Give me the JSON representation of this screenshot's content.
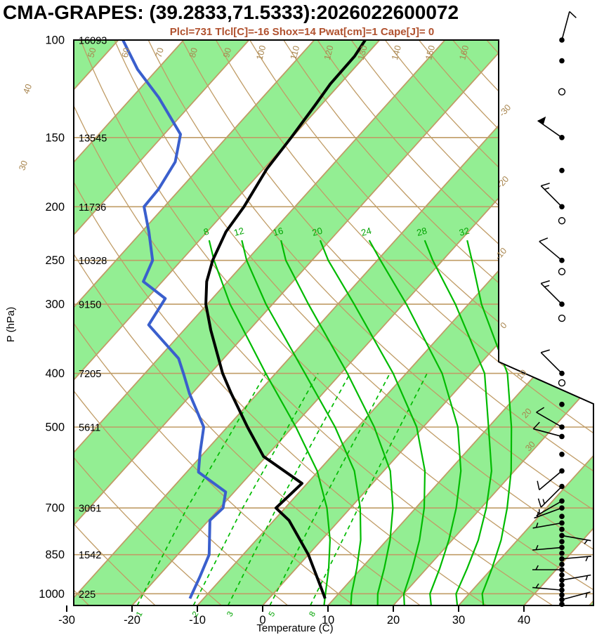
{
  "header": {
    "title": "CMA-GRAPES: (39.2833,71.5333):2026022600072",
    "subtitle": "Plcl=731 Tlcl[C]=-16 Shox=14 Pwat[cm]=1 Cape[J]= 0"
  },
  "axes": {
    "ylabel": "P (hPa)",
    "xlabel": "Temperature (C)",
    "pressure_ticks": [
      {
        "p": 100,
        "height": "16093"
      },
      {
        "p": 150,
        "height": "13545"
      },
      {
        "p": 200,
        "height": "11736"
      },
      {
        "p": 250,
        "height": "10328"
      },
      {
        "p": 300,
        "height": "9150"
      },
      {
        "p": 400,
        "height": "7205"
      },
      {
        "p": 500,
        "height": "5611"
      },
      {
        "p": 700,
        "height": "3061"
      },
      {
        "p": 850,
        "height": "1542"
      },
      {
        "p": 1000,
        "height": "225"
      }
    ],
    "temp_ticks": [
      -30,
      -20,
      -10,
      0,
      10,
      20,
      30,
      40
    ]
  },
  "colors": {
    "band_green": "#93ee93",
    "tan_line": "#c09c66",
    "green_line": "#00bb00",
    "dewpoint_blue": "#3a5fcd",
    "temperature_black": "#000000",
    "subtitle": "#b0512e"
  },
  "chart_data": {
    "type": "skewt-log-p",
    "pressure_range": [
      100,
      1050
    ],
    "isotherm_start": -110,
    "isotherm_end": 50,
    "isotherm_step": 10,
    "dry_adiabats": {
      "start": -30,
      "end": 170,
      "step": 10
    },
    "dry_adiabat_top_labels": [
      50,
      60,
      70,
      80,
      90,
      100,
      110,
      120,
      130,
      140,
      150,
      160
    ],
    "left_margin_labels": [
      40,
      30
    ],
    "right_isotherm_labels": [
      -30,
      -20,
      -10,
      0,
      10,
      20,
      30
    ],
    "moist_adiabats": [
      {
        "v": 8,
        "points": [
          [
            1050,
            9.4
          ],
          [
            1000,
            8.0
          ],
          [
            900,
            5.0
          ],
          [
            800,
            1.3
          ],
          [
            700,
            -3.6
          ],
          [
            600,
            -10.2
          ],
          [
            500,
            -19.5
          ],
          [
            400,
            -31.5
          ],
          [
            300,
            -46.5
          ],
          [
            250,
            -55.0
          ],
          [
            230,
            -58.5
          ]
        ]
      },
      {
        "v": 12,
        "points": [
          [
            1050,
            13.5
          ],
          [
            1000,
            12.0
          ],
          [
            900,
            9.3
          ],
          [
            800,
            6.0
          ],
          [
            700,
            1.5
          ],
          [
            600,
            -4.5
          ],
          [
            500,
            -13.5
          ],
          [
            400,
            -25.5
          ],
          [
            300,
            -41.0
          ],
          [
            250,
            -50.0
          ],
          [
            230,
            -53.5
          ]
        ]
      },
      {
        "v": 16,
        "points": [
          [
            1050,
            17.6
          ],
          [
            1000,
            16.0
          ],
          [
            900,
            13.5
          ],
          [
            800,
            10.5
          ],
          [
            700,
            6.5
          ],
          [
            600,
            1.0
          ],
          [
            500,
            -7.5
          ],
          [
            400,
            -19.0
          ],
          [
            300,
            -34.5
          ],
          [
            250,
            -44.0
          ],
          [
            230,
            -47.5
          ]
        ]
      },
      {
        "v": 20,
        "points": [
          [
            1050,
            21.7
          ],
          [
            1000,
            20.0
          ],
          [
            900,
            17.8
          ],
          [
            800,
            15.0
          ],
          [
            700,
            11.3
          ],
          [
            600,
            6.3
          ],
          [
            500,
            -1.0
          ],
          [
            400,
            -12.0
          ],
          [
            300,
            -27.5
          ],
          [
            250,
            -37.5
          ],
          [
            230,
            -41.5
          ]
        ]
      },
      {
        "v": 24,
        "points": [
          [
            1050,
            25.8
          ],
          [
            1000,
            24.0
          ],
          [
            900,
            22.0
          ],
          [
            800,
            19.5
          ],
          [
            700,
            16.2
          ],
          [
            600,
            11.8
          ],
          [
            500,
            5.3
          ],
          [
            400,
            -4.5
          ],
          [
            300,
            -19.5
          ],
          [
            250,
            -29.5
          ],
          [
            230,
            -34.0
          ]
        ]
      },
      {
        "v": 28,
        "points": [
          [
            1050,
            29.8
          ],
          [
            1000,
            28.0
          ],
          [
            900,
            26.2
          ],
          [
            800,
            24.0
          ],
          [
            700,
            20.8
          ],
          [
            600,
            16.5
          ],
          [
            500,
            10.0
          ],
          [
            400,
            2.0
          ],
          [
            300,
            -12.0
          ],
          [
            250,
            -21.5
          ],
          [
            230,
            -25.5
          ]
        ]
      },
      {
        "v": 32,
        "points": [
          [
            1050,
            33.8
          ],
          [
            1000,
            32.0
          ],
          [
            900,
            30.0
          ],
          [
            800,
            27.5
          ],
          [
            700,
            24.0
          ],
          [
            600,
            19.5
          ],
          [
            500,
            13.5
          ],
          [
            400,
            5.5
          ],
          [
            300,
            -8.0
          ],
          [
            250,
            -15.5
          ],
          [
            230,
            -19.0
          ]
        ]
      }
    ],
    "mixing_ratio_lines": [
      {
        "v": 1,
        "points": [
          [
            1050,
            -19.2
          ],
          [
            700,
            -25.0
          ],
          [
            400,
            -31.5
          ]
        ]
      },
      {
        "v": 2,
        "points": [
          [
            1050,
            -10.6
          ],
          [
            700,
            -16.5
          ],
          [
            400,
            -23.5
          ]
        ]
      },
      {
        "v": 3,
        "points": [
          [
            1050,
            -5.3
          ],
          [
            700,
            -11.3
          ],
          [
            400,
            -18.6
          ]
        ]
      },
      {
        "v": 5,
        "points": [
          [
            1050,
            1.1
          ],
          [
            700,
            -4.8
          ],
          [
            400,
            -12.5
          ]
        ]
      },
      {
        "v": 8,
        "points": [
          [
            1050,
            7.3
          ],
          [
            700,
            1.2
          ],
          [
            400,
            -6.8
          ]
        ]
      }
    ],
    "temperature_profile": [
      [
        100,
        -62.2
      ],
      [
        107,
        -61.6
      ],
      [
        120,
        -61.5
      ],
      [
        131,
        -60.9
      ],
      [
        150,
        -60.1
      ],
      [
        171,
        -59.5
      ],
      [
        200,
        -57.8
      ],
      [
        222,
        -57.1
      ],
      [
        250,
        -55.2
      ],
      [
        273,
        -53.2
      ],
      [
        300,
        -50.2
      ],
      [
        334,
        -45.9
      ],
      [
        400,
        -38.1
      ],
      [
        435,
        -34.0
      ],
      [
        500,
        -26.9
      ],
      [
        565,
        -20.4
      ],
      [
        632,
        -10.8
      ],
      [
        700,
        -11.4
      ],
      [
        737,
        -7.7
      ],
      [
        850,
        0.0
      ],
      [
        957,
        5.6
      ],
      [
        1020,
        8.6
      ]
    ],
    "dewpoint_profile": [
      [
        100,
        -99.3
      ],
      [
        113,
        -93.0
      ],
      [
        127,
        -85.9
      ],
      [
        148,
        -77.5
      ],
      [
        166,
        -74.5
      ],
      [
        186,
        -73.3
      ],
      [
        200,
        -73.1
      ],
      [
        222,
        -68.9
      ],
      [
        250,
        -64.4
      ],
      [
        273,
        -62.9
      ],
      [
        293,
        -57.2
      ],
      [
        327,
        -56.1
      ],
      [
        376,
        -46.9
      ],
      [
        400,
        -44.1
      ],
      [
        435,
        -40.4
      ],
      [
        500,
        -33.6
      ],
      [
        557,
        -30.6
      ],
      [
        603,
        -28.2
      ],
      [
        655,
        -21.3
      ],
      [
        700,
        -19.5
      ],
      [
        737,
        -19.8
      ],
      [
        850,
        -15.2
      ],
      [
        930,
        -13.6
      ],
      [
        1020,
        -12.1
      ]
    ],
    "wind_barbs": [
      {
        "p": 100,
        "m": "dot",
        "s": 10,
        "a": 15
      },
      {
        "p": 109,
        "m": "dot"
      },
      {
        "p": 124,
        "m": "circle"
      },
      {
        "p": 150,
        "m": "dot",
        "s": 50,
        "a": -55
      },
      {
        "p": 172,
        "m": "dot"
      },
      {
        "p": 200,
        "m": "dot",
        "s": 15,
        "a": -45
      },
      {
        "p": 212,
        "m": "circle"
      },
      {
        "p": 250,
        "m": "dot",
        "s": 10,
        "a": -50
      },
      {
        "p": 262,
        "m": "circle"
      },
      {
        "p": 300,
        "m": "dot",
        "s": 15,
        "a": -45
      },
      {
        "p": 318,
        "m": "circle"
      },
      {
        "p": 400,
        "m": "dot",
        "s": 10,
        "a": -45
      },
      {
        "p": 416,
        "m": "circle"
      },
      {
        "p": 455,
        "m": "dot"
      },
      {
        "p": 500,
        "m": "dot",
        "s": 10,
        "a": -60
      },
      {
        "p": 520,
        "m": "dot",
        "s": 10,
        "a": -75
      },
      {
        "p": 560,
        "m": "dot"
      },
      {
        "p": 600,
        "m": "dot",
        "s": 10,
        "a": -130
      },
      {
        "p": 640,
        "m": "dot",
        "s": 15,
        "a": -135
      },
      {
        "p": 680,
        "m": "dot",
        "s": 5,
        "a": -120
      },
      {
        "p": 700,
        "m": "dot",
        "s": 5,
        "a": -110
      },
      {
        "p": 725,
        "m": "dot"
      },
      {
        "p": 745,
        "m": "dot",
        "s": 5,
        "a": -100
      },
      {
        "p": 765,
        "m": "dot"
      },
      {
        "p": 785,
        "m": "dot",
        "s": 5,
        "a": 100
      },
      {
        "p": 805,
        "m": "dot"
      },
      {
        "p": 825,
        "m": "dot",
        "s": 5,
        "a": -95
      },
      {
        "p": 845,
        "m": "dot"
      },
      {
        "p": 865,
        "m": "dot",
        "s": 5,
        "a": 85
      },
      {
        "p": 885,
        "m": "dot"
      },
      {
        "p": 905,
        "m": "dot",
        "s": 5,
        "a": -90
      },
      {
        "p": 925,
        "m": "dot"
      },
      {
        "p": 945,
        "m": "dot",
        "s": 5,
        "a": 80
      },
      {
        "p": 965,
        "m": "dot"
      },
      {
        "p": 985,
        "m": "dot",
        "s": 5,
        "a": -85
      },
      {
        "p": 1005,
        "m": "dot"
      },
      {
        "p": 1025,
        "m": "dot",
        "s": 5,
        "a": 75
      },
      {
        "p": 1045,
        "m": "dot"
      }
    ]
  }
}
